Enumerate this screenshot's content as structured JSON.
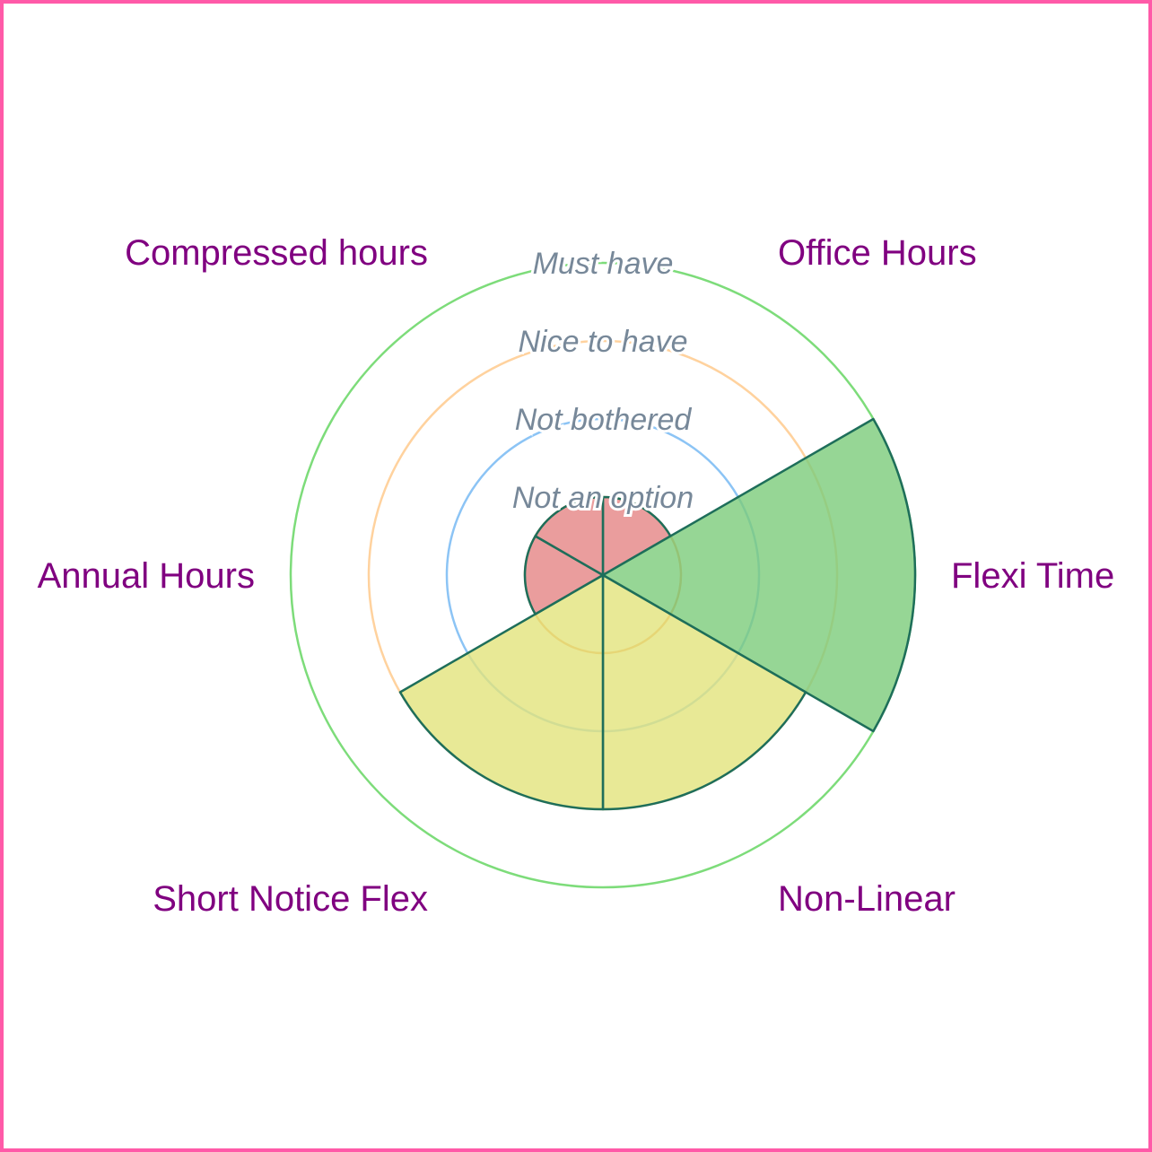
{
  "chart_data": {
    "type": "polar-area",
    "categories": [
      "Office Hours",
      "Flexi Time",
      "Non-Linear",
      "Short Notice Flex",
      "Annual Hours",
      "Compressed hours"
    ],
    "values": [
      1,
      4,
      3,
      3,
      1,
      1
    ],
    "levels": [
      "Not an option",
      "Not bothered",
      "Nice to have",
      "Must have"
    ],
    "rmax": 4,
    "level_colors": [
      "#f4a261",
      "#8cc4f5",
      "#ffd29e",
      "#7ddc7a"
    ],
    "value_colors": {
      "1": "#e58585",
      "3": "#e2e37c",
      "4": "#7ccc7a"
    },
    "outline_color": "#1e6e5a"
  }
}
